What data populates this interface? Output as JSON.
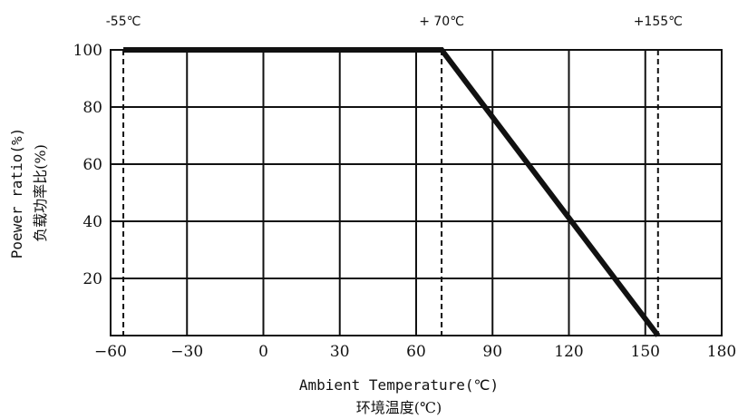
{
  "chart_data": {
    "type": "line",
    "xlabel": "Ambient Temperature(℃)",
    "xlabel_cn": "环境温度(℃)",
    "ylabel": "Poewer ratio(%)",
    "ylabel_cn": "负载功率比(%)",
    "xlim": [
      -60,
      180
    ],
    "ylim": [
      0,
      100
    ],
    "x_ticks": [
      -60,
      -30,
      0,
      30,
      60,
      90,
      120,
      150,
      180
    ],
    "y_ticks": [
      20,
      40,
      60,
      80,
      100
    ],
    "x_tick_labels": [
      "−60",
      "−30",
      "0",
      "30",
      "60",
      "90",
      "120",
      "150",
      "180"
    ],
    "y_tick_labels": [
      "20",
      "40",
      "60",
      "80",
      "100"
    ],
    "grid": true,
    "series": [
      {
        "x": [
          -55,
          70,
          155
        ],
        "y": [
          100,
          100,
          0
        ]
      }
    ],
    "reference_lines": [
      {
        "x": -55,
        "label": "-55℃"
      },
      {
        "x": 70,
        "label": "+ 70℃"
      },
      {
        "x": 155,
        "label": "+155℃"
      }
    ]
  }
}
